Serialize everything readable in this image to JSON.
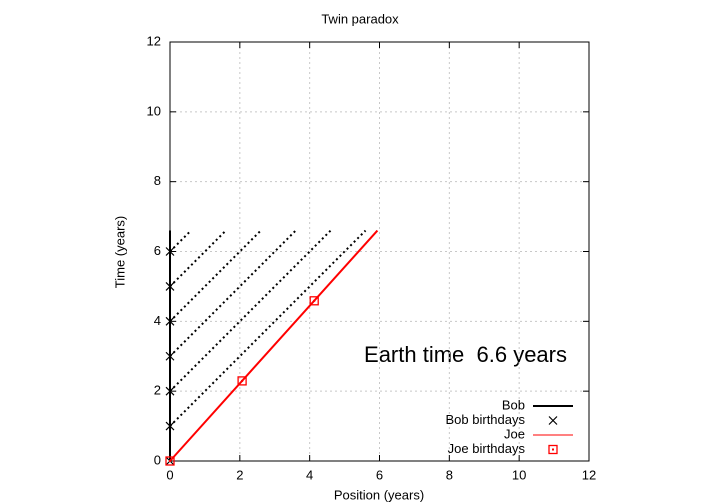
{
  "chart_data": {
    "type": "line",
    "title": "Twin paradox",
    "x_label": "Position (years)",
    "y_label": "Time (years)",
    "annotation": "Earth time  6.6 years",
    "xlim": [
      0,
      12
    ],
    "ylim": [
      0,
      12
    ],
    "xticks": [
      0,
      2,
      4,
      6,
      8,
      10,
      12
    ],
    "yticks": [
      0,
      2,
      4,
      6,
      8,
      10,
      12
    ],
    "grid": true,
    "legend": "lower right",
    "series": [
      {
        "name": "Bob",
        "kind": "line",
        "color": "#000000",
        "x": [
          0,
          0
        ],
        "values": [
          0,
          6.6
        ]
      },
      {
        "name": "Bob birthdays",
        "kind": "cross",
        "color": "#000000",
        "x": [
          0,
          0,
          0,
          0,
          0,
          0,
          0
        ],
        "values": [
          0,
          1,
          2,
          3,
          4,
          5,
          6
        ]
      },
      {
        "name": "Joe",
        "kind": "line",
        "color": "#ff0000",
        "x": [
          0,
          5.94
        ],
        "values": [
          0,
          6.6
        ]
      },
      {
        "name": "Joe birthdays",
        "kind": "square",
        "color": "#ff0000",
        "x": [
          0,
          2.065,
          4.13
        ],
        "values": [
          0,
          2.294,
          4.588
        ]
      }
    ],
    "signals": [
      {
        "x": [
          0,
          5.6
        ],
        "values": [
          1,
          6.6
        ]
      },
      {
        "x": [
          0,
          4.6
        ],
        "values": [
          2,
          6.6
        ]
      },
      {
        "x": [
          0,
          3.6
        ],
        "values": [
          3,
          6.6
        ]
      },
      {
        "x": [
          0,
          2.6
        ],
        "values": [
          4,
          6.6
        ]
      },
      {
        "x": [
          0,
          1.6
        ],
        "values": [
          5,
          6.6
        ]
      },
      {
        "x": [
          0,
          0.6
        ],
        "values": [
          6,
          6.6
        ]
      }
    ]
  }
}
